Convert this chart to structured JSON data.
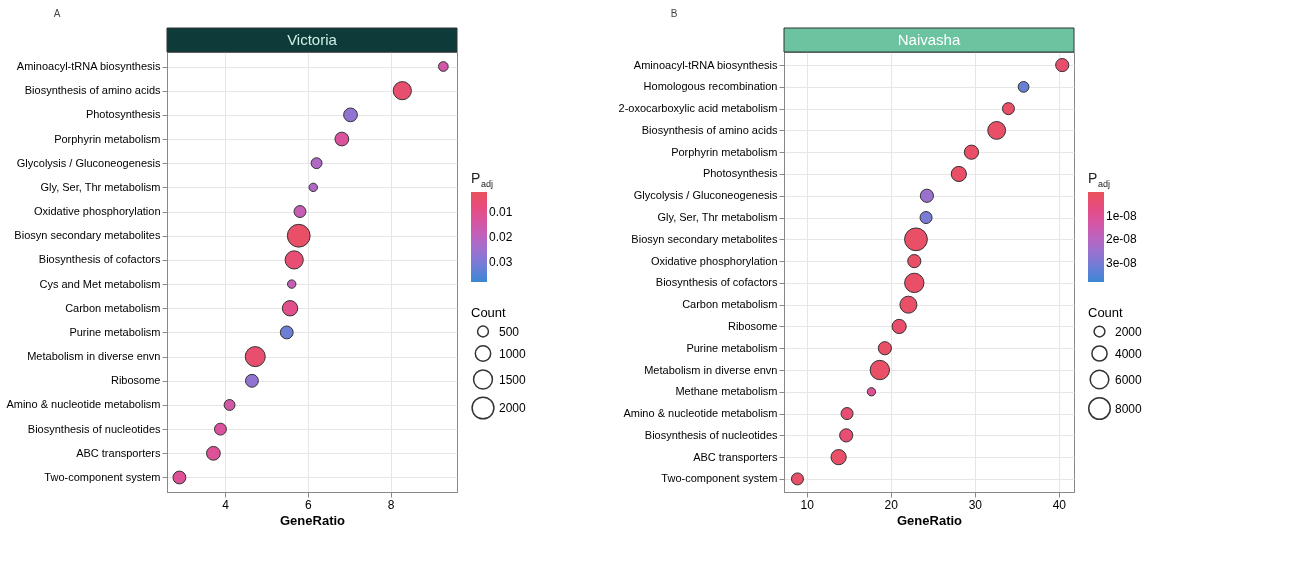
{
  "chart_data": [
    {
      "type": "scatter",
      "orientation": "horizontal",
      "title": "Victoria",
      "annotations": [
        "A"
      ],
      "xlabel": "GeneRatio",
      "clabel": "P$_{adj}$",
      "legend_title": "Count",
      "grid": true,
      "categories": [
        "Aminoacyl-tRNA biosynthesis",
        "Biosynthesis of amino acids",
        "Photosynthesis",
        "Porphyrin metabolism",
        "Glycolysis / Gluconeogenesis",
        "Gly, Ser, Thr metabolism",
        "Oxidative phosphorylation",
        "Biosyn secondary metabolites",
        "Biosynthesis of cofactors",
        "Cys and Met metabolism",
        "Carbon metabolism",
        "Purine metabolism",
        "Metabolism in diverse envn",
        "Ribosome",
        "Amino & nucleotide metabolism",
        "Biosynthesis of nucleotides",
        "ABC transporters",
        "Two-component system"
      ],
      "values": [
        9.27,
        8.28,
        7.03,
        6.82,
        6.21,
        6.13,
        5.81,
        5.78,
        5.67,
        5.61,
        5.57,
        5.49,
        4.73,
        4.65,
        4.11,
        3.89,
        3.72,
        2.9
      ],
      "cvalues": [
        0.015,
        0.005,
        0.027,
        0.013,
        0.022,
        0.022,
        0.018,
        0.004,
        0.006,
        0.018,
        0.01,
        0.032,
        0.005,
        0.027,
        0.015,
        0.013,
        0.012,
        0.012
      ],
      "sizes": [
        400,
        1400,
        800,
        800,
        500,
        300,
        600,
        2200,
        1400,
        300,
        1000,
        700,
        1700,
        700,
        500,
        600,
        800,
        700
      ],
      "size_legend": [
        500,
        1000,
        1500,
        2000
      ],
      "xlim": [
        2.6,
        9.6
      ],
      "xticks": [
        4,
        6,
        8
      ],
      "clim": [
        0.002,
        0.038
      ],
      "cticks": [
        0.01,
        0.02,
        0.03
      ]
    },
    {
      "type": "scatter",
      "orientation": "horizontal",
      "title": "Naivasha",
      "annotations": [
        "B"
      ],
      "xlabel": "GeneRatio",
      "clabel": "P$_{adj}$",
      "legend_title": "Count",
      "grid": true,
      "categories": [
        "Aminoacyl-tRNA biosynthesis",
        "Homologous recombination",
        "2-oxocarboxylic acid metabolism",
        "Biosynthesis of amino acids",
        "Porphyrin metabolism",
        "Photosynthesis",
        "Glycolysis / Gluconeogenesis",
        "Gly, Ser, Thr metabolism",
        "Biosyn secondary metabolites",
        "Oxidative phosphorylation",
        "Biosynthesis of cofactors",
        "Carbon metabolism",
        "Ribosome",
        "Purine metabolism",
        "Metabolism in diverse envn",
        "Methane metabolism",
        "Amino & nucleotide metabolism",
        "Biosynthesis of nucleotides",
        "ABC transporters",
        "Two-component system"
      ],
      "values": [
        40.4,
        35.8,
        34.0,
        32.6,
        29.6,
        28.1,
        24.3,
        24.2,
        23.0,
        22.8,
        22.8,
        22.1,
        21.0,
        19.3,
        18.7,
        17.7,
        14.8,
        14.7,
        13.8,
        8.9
      ],
      "cvalues": [
        3e-09,
        3.2e-08,
        2e-09,
        2e-09,
        2e-09,
        2e-09,
        2.5e-08,
        3e-08,
        2e-09,
        2e-09,
        2e-09,
        2e-09,
        3e-09,
        2e-09,
        2e-09,
        1e-08,
        4e-09,
        4e-09,
        2e-09,
        2e-09
      ],
      "sizes": [
        3000,
        2000,
        2500,
        5500,
        3500,
        4000,
        3000,
        2500,
        9000,
        3000,
        6500,
        5000,
        3500,
        3000,
        6500,
        1200,
        2500,
        3000,
        4000,
        2500
      ],
      "size_legend": [
        2000,
        4000,
        6000,
        8000
      ],
      "xlim": [
        7.3,
        41.8
      ],
      "xticks": [
        10,
        20,
        30,
        40
      ],
      "clim": [
        0,
        3.8e-08
      ],
      "cticks": [
        {
          "value": 1e-08,
          "label": "1e-08"
        },
        {
          "value": 2e-08,
          "label": "2e-08"
        },
        {
          "value": 3e-08,
          "label": "3e-08"
        }
      ]
    }
  ]
}
